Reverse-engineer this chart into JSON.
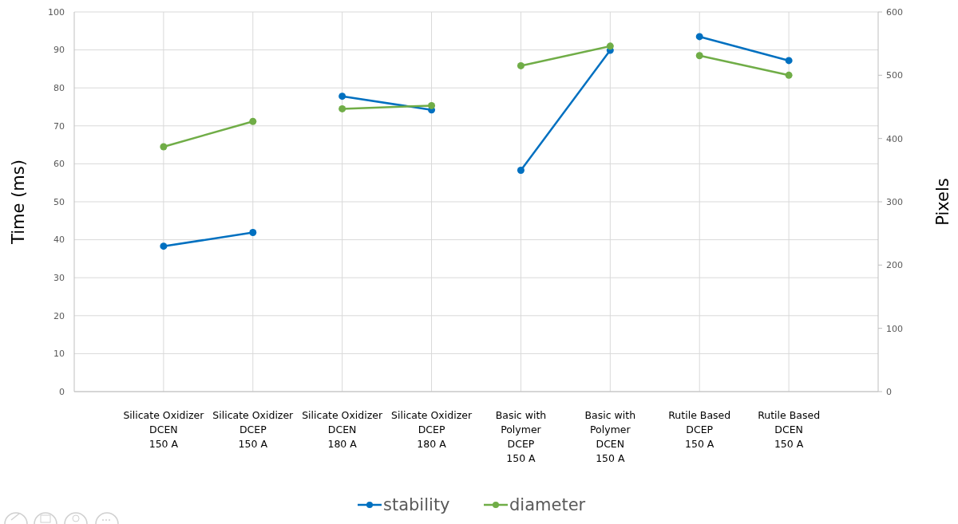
{
  "chart_data": {
    "type": "line",
    "categories": [
      "Silicate Oxidizer\nDCEN\n150 A",
      "Silicate Oxidizer\nDCEP\n150 A",
      "Silicate Oxidizer\nDCEN\n180 A",
      "Silicate Oxidizer\nDCEP\n180 A",
      "Basic with\nPolymer\nDCEP\n150 A",
      "Basic with\nPolymer\nDCEN\n150 A",
      "Rutile Based\nDCEP\n150 A",
      "Rutile Based\nDCEN\n150 A"
    ],
    "ylabel": "Time (ms)",
    "y2label": "Pixels",
    "ylim": [
      0,
      100
    ],
    "yticks": [
      0,
      10,
      20,
      30,
      40,
      50,
      60,
      70,
      80,
      90,
      100
    ],
    "y2lim": [
      0,
      600
    ],
    "y2ticks": [
      0,
      100,
      200,
      300,
      400,
      500,
      600
    ],
    "grid": true,
    "legend": "bottom",
    "marker": "circle",
    "line_style": "solid",
    "series": [
      {
        "name": "stability",
        "color": "#0070c0",
        "values": [
          38.3,
          41.9,
          null,
          null,
          null,
          null,
          null,
          null
        ]
      },
      {
        "color": "#0070c0",
        "values": [
          null,
          null,
          77.8,
          74.2,
          null,
          null,
          null,
          null
        ]
      },
      {
        "color": "#0070c0",
        "values": [
          null,
          null,
          null,
          null,
          58.3,
          89.9,
          null,
          null
        ]
      },
      {
        "color": "#0070c0",
        "values": [
          null,
          null,
          null,
          null,
          null,
          null,
          93.5,
          87.2
        ]
      },
      {
        "name": "diameter",
        "color": "#70ad47",
        "axis": "y2",
        "values": [
          387,
          427,
          null,
          null,
          null,
          null,
          null,
          null
        ]
      },
      {
        "color": "#70ad47",
        "axis": "y2",
        "values": [
          null,
          null,
          447,
          452,
          null,
          null,
          null,
          null
        ]
      },
      {
        "color": "#70ad47",
        "axis": "y2",
        "values": [
          null,
          null,
          null,
          null,
          515,
          546,
          null,
          null
        ]
      },
      {
        "color": "#70ad47",
        "axis": "y2",
        "values": [
          null,
          null,
          null,
          null,
          null,
          null,
          531,
          500
        ]
      }
    ]
  }
}
